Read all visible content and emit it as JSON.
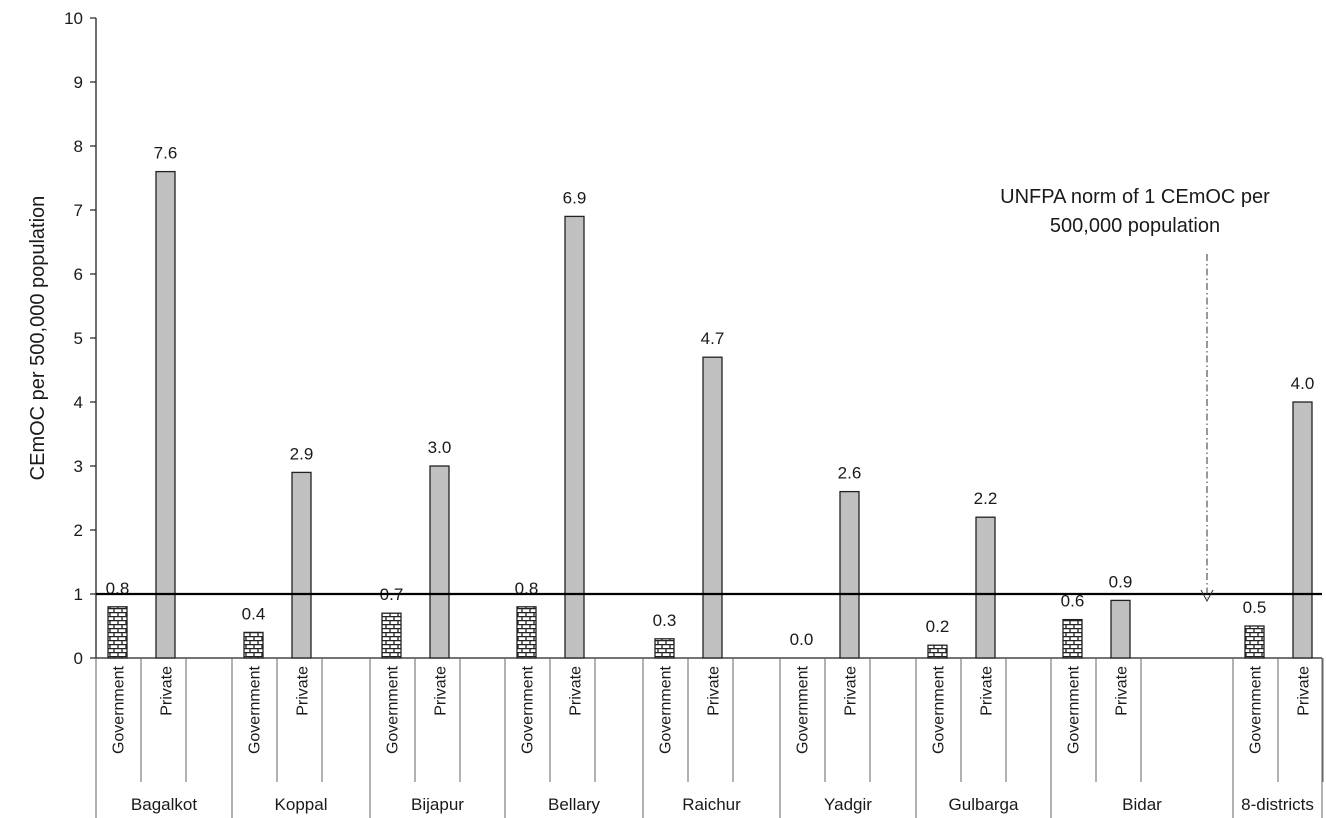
{
  "chart_data": {
    "type": "bar",
    "ylabel": "CEmOC per 500,000 population",
    "ylim": [
      0,
      10
    ],
    "yticks": [
      0,
      1,
      2,
      3,
      4,
      5,
      6,
      7,
      8,
      9,
      10
    ],
    "grid": false,
    "groups": [
      {
        "name": "Bagalkot",
        "bars": [
          {
            "label": "Government",
            "value": 0.8
          },
          {
            "label": "Private",
            "value": 7.6
          }
        ]
      },
      {
        "name": "Koppal",
        "bars": [
          {
            "label": "Government",
            "value": 0.4
          },
          {
            "label": "Private",
            "value": 2.9
          }
        ]
      },
      {
        "name": "Bijapur",
        "bars": [
          {
            "label": "Government",
            "value": 0.7
          },
          {
            "label": "Private",
            "value": 3.0
          }
        ]
      },
      {
        "name": "Bellary",
        "bars": [
          {
            "label": "Government",
            "value": 0.8
          },
          {
            "label": "Private",
            "value": 6.9
          }
        ]
      },
      {
        "name": "Raichur",
        "bars": [
          {
            "label": "Government",
            "value": 0.3
          },
          {
            "label": "Private",
            "value": 4.7
          }
        ]
      },
      {
        "name": "Yadgir",
        "bars": [
          {
            "label": "Government",
            "value": 0.0
          },
          {
            "label": "Private",
            "value": 2.6
          }
        ]
      },
      {
        "name": "Gulbarga",
        "bars": [
          {
            "label": "Government",
            "value": 0.2
          },
          {
            "label": "Private",
            "value": 2.2
          }
        ]
      },
      {
        "name": "Bidar",
        "bars": [
          {
            "label": "Government",
            "value": 0.6
          },
          {
            "label": "Private",
            "value": 0.9
          }
        ]
      },
      {
        "name": "8-districts",
        "bars": [
          {
            "label": "Government",
            "value": 0.5
          },
          {
            "label": "Private",
            "value": 4.0
          }
        ]
      }
    ],
    "reference_line": {
      "value": 1
    },
    "annotation": {
      "lines": [
        "UNFPA norm of 1 CEmOC per",
        "500,000 population"
      ]
    },
    "colors": {
      "government_fill": "#ffffff",
      "government_pattern": "#222222",
      "private_fill": "#c0c0c0",
      "line": "#000000"
    }
  }
}
